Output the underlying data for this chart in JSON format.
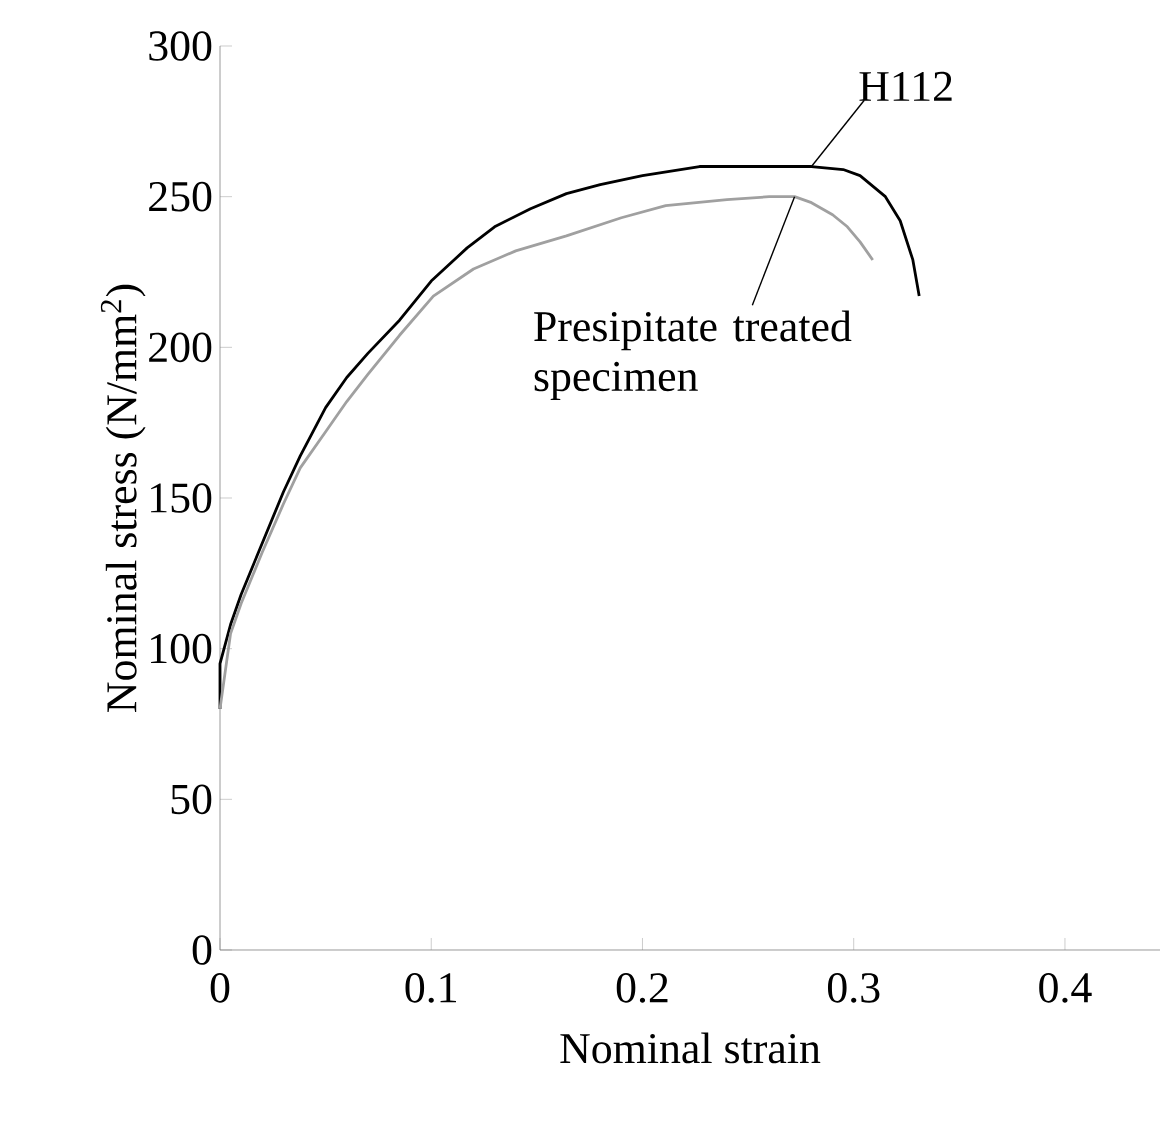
{
  "chart_data": {
    "type": "line",
    "xlabel": "Nominal strain",
    "ylabel": "Nominal stress (N/mm$^{2}$)",
    "xlim": [
      0,
      0.445
    ],
    "ylim": [
      0,
      300
    ],
    "xticks": [
      0,
      0.1,
      0.2,
      0.3,
      0.4
    ],
    "yticks": [
      0,
      50,
      100,
      150,
      200,
      250,
      300
    ],
    "grid": false,
    "legend": false,
    "marker": "none",
    "line_style": "solid",
    "series": [
      {
        "name": "H112",
        "color": "#000000",
        "x": [
          0,
          0,
          0.005,
          0.01,
          0.02,
          0.03,
          0.038,
          0.05,
          0.06,
          0.07,
          0.085,
          0.1,
          0.117,
          0.13,
          0.147,
          0.164,
          0.18,
          0.2,
          0.227,
          0.25,
          0.28,
          0.295,
          0.303,
          0.315,
          0.322,
          0.328,
          0.331
        ],
        "values": [
          80,
          95,
          108,
          118,
          135,
          152,
          164,
          180,
          190,
          198,
          209,
          222,
          233,
          240,
          246,
          251,
          254,
          257,
          260,
          260,
          260,
          259,
          257,
          250,
          242,
          229,
          217
        ]
      },
      {
        "name": "Presipitate treated specimen",
        "color": "#a0a0a0",
        "x": [
          0,
          0.005,
          0.01,
          0.02,
          0.03,
          0.038,
          0.05,
          0.06,
          0.07,
          0.085,
          0.101,
          0.12,
          0.14,
          0.164,
          0.19,
          0.211,
          0.24,
          0.26,
          0.272,
          0.28,
          0.29,
          0.297,
          0.303,
          0.309
        ],
        "values": [
          80,
          105,
          115,
          132,
          148,
          160,
          172,
          182,
          191,
          204,
          217,
          226,
          232,
          237,
          243,
          247,
          249,
          250,
          250,
          248,
          244,
          240,
          235,
          229
        ]
      }
    ]
  }
}
